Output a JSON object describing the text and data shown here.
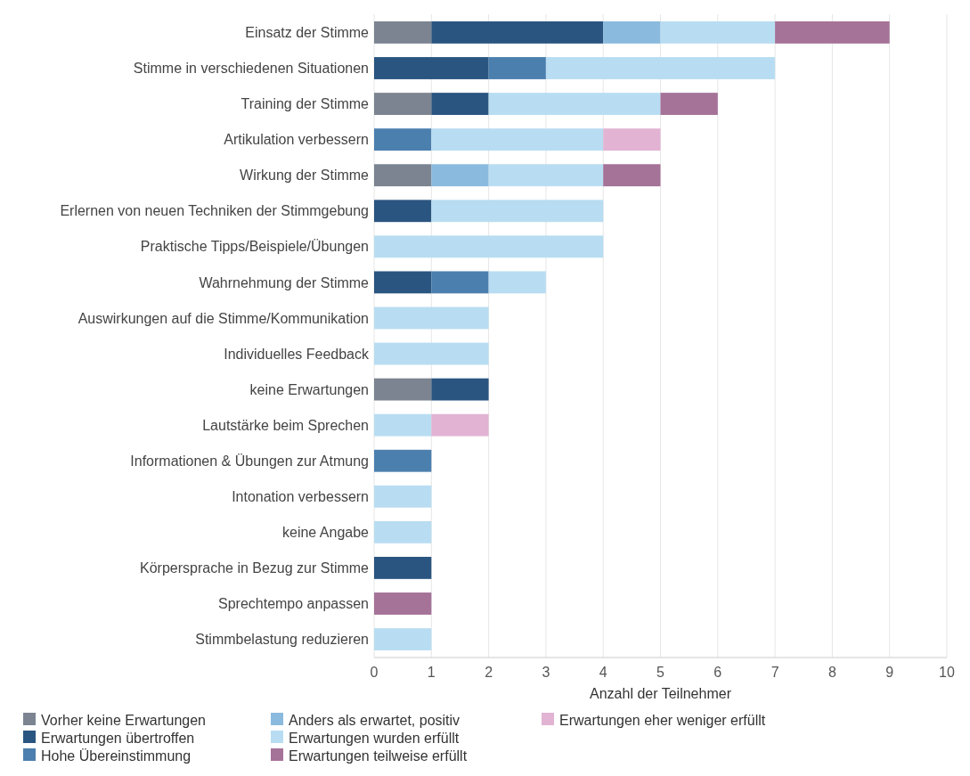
{
  "chart_data": {
    "type": "bar",
    "orientation": "horizontal",
    "stacked": true,
    "xlabel": "Anzahl der Teilnehmer",
    "categories": [
      "Einsatz der Stimme",
      "Stimme in verschiedenen Situationen",
      "Training der Stimme",
      "Artikulation verbessern",
      "Wirkung der Stimme",
      "Erlernen von neuen Techniken der Stimmgebung",
      "Praktische Tipps/Beispiele/Übungen",
      "Wahrnehmung der Stimme",
      "Auswirkungen auf die Stimme/Kommunikation",
      "Individuelles Feedback",
      "keine Erwartungen",
      "Lautstärke beim Sprechen",
      "Informationen & Übungen zur Atmung",
      "Intonation verbessern",
      "keine Angabe",
      "Körpersprache in Bezug zur Stimme",
      "Sprechtempo anpassen",
      "Stimmbelastung reduzieren"
    ],
    "series": [
      {
        "name": "Vorher keine Erwartungen",
        "color": "#7b8490",
        "values": [
          1,
          null,
          1,
          null,
          1,
          null,
          null,
          null,
          null,
          null,
          1,
          null,
          null,
          null,
          null,
          null,
          null,
          null
        ]
      },
      {
        "name": "Erwartungen übertroffen",
        "color": "#2a5580",
        "values": [
          3,
          2,
          1,
          null,
          null,
          1,
          null,
          1,
          null,
          null,
          1,
          null,
          null,
          null,
          null,
          1,
          null,
          null
        ]
      },
      {
        "name": "Hohe Übereinstimmung",
        "color": "#4b7fae",
        "values": [
          null,
          1,
          null,
          1,
          null,
          null,
          null,
          1,
          null,
          null,
          null,
          null,
          1,
          null,
          null,
          null,
          null,
          null
        ]
      },
      {
        "name": "Anders als erwartet, positiv",
        "color": "#8bbadf",
        "values": [
          1,
          null,
          null,
          null,
          1,
          null,
          null,
          null,
          null,
          null,
          null,
          null,
          null,
          null,
          null,
          null,
          null,
          null
        ]
      },
      {
        "name": "Erwartungen wurden erfüllt",
        "color": "#b8ddf2",
        "values": [
          2,
          4,
          3,
          3,
          2,
          3,
          4,
          1,
          2,
          2,
          null,
          1,
          null,
          1,
          1,
          null,
          null,
          1
        ]
      },
      {
        "name": "Erwartungen teilweise erfüllt",
        "color": "#a57298",
        "values": [
          2,
          null,
          1,
          null,
          1,
          null,
          null,
          null,
          null,
          null,
          null,
          null,
          null,
          null,
          null,
          null,
          1,
          null
        ]
      },
      {
        "name": "Erwartungen eher weniger erfüllt",
        "color": "#e2b3d2",
        "values": [
          null,
          null,
          null,
          1,
          null,
          null,
          null,
          null,
          null,
          null,
          null,
          1,
          null,
          null,
          null,
          null,
          null,
          null
        ]
      }
    ],
    "xlim": [
      0,
      10
    ],
    "xticks": [
      0,
      1,
      2,
      3,
      4,
      5,
      6,
      7,
      8,
      9,
      10
    ],
    "grid": "x",
    "legend": "bottom"
  }
}
